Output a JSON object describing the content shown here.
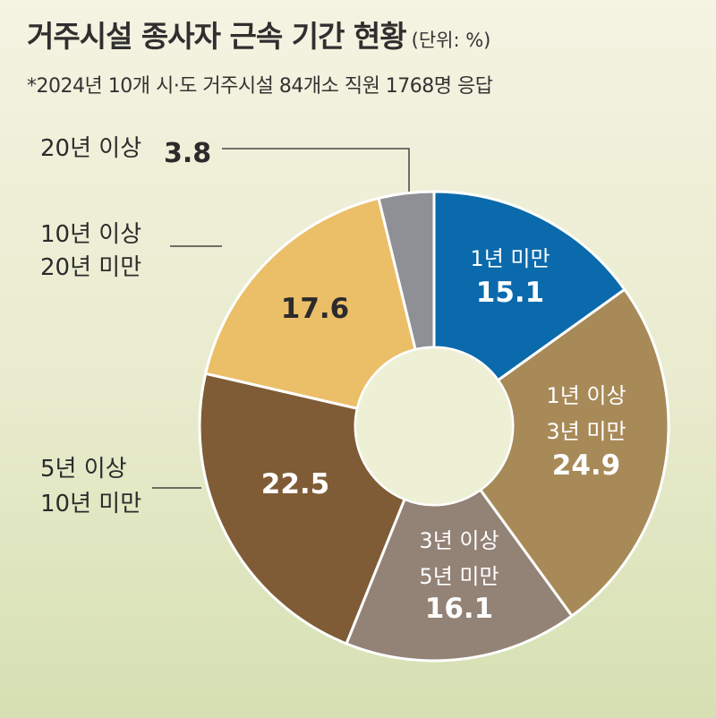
{
  "header": {
    "title": "거주시설 종사자 근속 기간 현황",
    "unit": "(단위: %)",
    "subtitle": "*2024년 10개 시·도 거주시설 84개소 직원 1768명 응답"
  },
  "chart_data": {
    "type": "pie",
    "donut": true,
    "title": "거주시설 종사자 근속 기간 현황",
    "unit": "%",
    "slices": [
      {
        "label": "1년 미만",
        "value": 15.1,
        "color": "#0a6aac",
        "text_color": "#ffffff"
      },
      {
        "label": "1년 이상 3년 미만",
        "value": 24.9,
        "color": "#a88a58",
        "text_color": "#ffffff"
      },
      {
        "label": "3년 이상 5년 미만",
        "value": 16.1,
        "color": "#938276",
        "text_color": "#ffffff"
      },
      {
        "label": "5년 이상 10년 미만",
        "value": 22.5,
        "color": "#7f5c36",
        "text_color": "#ffffff"
      },
      {
        "label": "10년 이상 20년 미만",
        "value": 17.6,
        "color": "#ebbe68",
        "text_color": "#2b2b2b"
      },
      {
        "label": "20년 이상",
        "value": 3.8,
        "color": "#8f9096",
        "text_color": "#2b2b2b"
      }
    ],
    "label_lines": {
      "0": [
        "1년 미만"
      ],
      "1": [
        "1년 이상",
        "3년 미만"
      ],
      "2": [
        "3년 이상",
        "5년 미만"
      ],
      "3": [
        "5년 이상",
        "10년 미만"
      ],
      "4": [
        "10년 이상",
        "20년 미만"
      ],
      "5": [
        "20년 이상"
      ]
    },
    "inside_label_slices": [
      0,
      1,
      2
    ],
    "outside_label_slices": [
      3,
      4,
      5
    ],
    "inside_value_slices": [
      0,
      1,
      2,
      3,
      4
    ],
    "outside_value_slices": [
      5
    ]
  }
}
